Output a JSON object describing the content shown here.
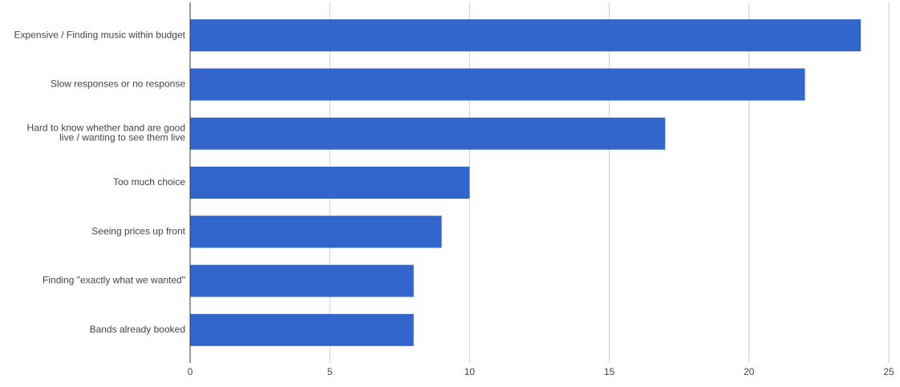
{
  "chart_data": {
    "type": "bar",
    "orientation": "horizontal",
    "categories": [
      "Expensive / Finding music within budget",
      "Slow responses or no response",
      "Hard to know whether band are good live / wanting to see them live",
      "Too much choice",
      "Seeing prices up front",
      "Finding \"exactly what we wanted\"",
      "Bands already booked"
    ],
    "values": [
      24,
      22,
      17,
      10,
      9,
      8,
      8
    ],
    "color": "#3366cc",
    "xlim": [
      0,
      25
    ],
    "xticks": [
      0,
      5,
      10,
      15,
      20,
      25
    ],
    "grid": true
  }
}
